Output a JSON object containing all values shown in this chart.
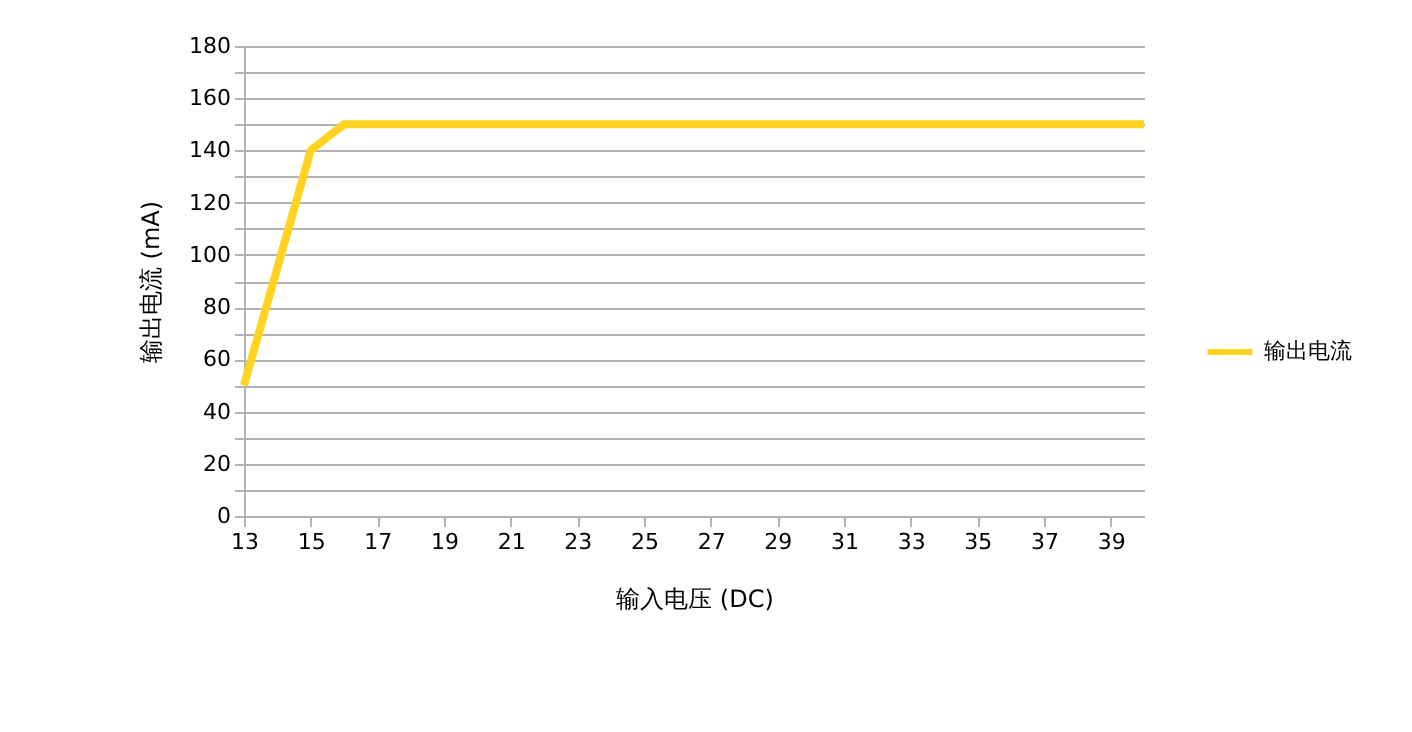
{
  "chart_data": {
    "type": "line",
    "xlabel": "输入电压 (DC)",
    "ylabel": "输出电流 (mA)",
    "x": [
      13,
      15,
      16,
      40
    ],
    "series": [
      {
        "name": "输出电流",
        "color": "#ffd320",
        "values": [
          50,
          140,
          150,
          150
        ]
      }
    ],
    "xlim": [
      13,
      40
    ],
    "xticks": [
      13,
      15,
      17,
      19,
      21,
      23,
      25,
      27,
      29,
      31,
      33,
      35,
      37,
      39
    ],
    "ylim": [
      0,
      180
    ],
    "yticks": [
      0,
      {
        "value": 10,
        "label": null
      },
      20,
      {
        "value": 30,
        "label": null
      },
      40,
      {
        "value": 50,
        "label": null
      },
      60,
      {
        "value": 70,
        "label": null
      },
      80,
      {
        "value": 90,
        "label": null
      },
      100,
      {
        "value": 110,
        "label": null
      },
      120,
      {
        "value": 130,
        "label": null
      },
      140,
      {
        "value": 150,
        "label": null
      },
      160,
      {
        "value": 170,
        "label": null
      },
      180
    ],
    "grid": "y",
    "legend": "right",
    "marker": "none",
    "line_style": "solid"
  }
}
